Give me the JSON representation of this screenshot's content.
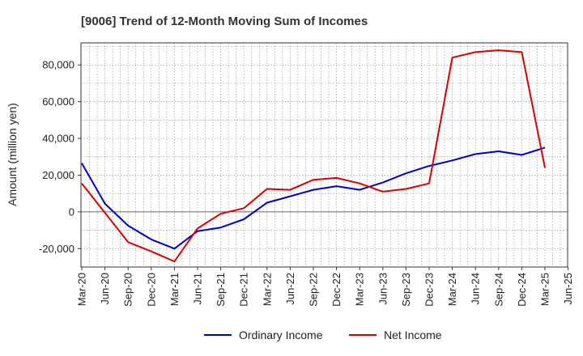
{
  "chart_data": {
    "type": "line",
    "title": "[9006]  Trend of 12-Month Moving Sum of Incomes",
    "xlabel": "",
    "ylabel": "Amount (million yen)",
    "ylim": [
      -30000,
      92000
    ],
    "yticks": [
      -20000,
      0,
      20000,
      40000,
      60000,
      80000
    ],
    "ytick_labels": [
      "-20,000",
      "0",
      "20,000",
      "40,000",
      "60,000",
      "80,000"
    ],
    "x_tick_labels": [
      "Mar-20",
      "Jun-20",
      "Sep-20",
      "Dec-20",
      "Mar-21",
      "Jun-21",
      "Sep-21",
      "Dec-21",
      "Mar-22",
      "Jun-22",
      "Sep-22",
      "Dec-22",
      "Mar-23",
      "Jun-23",
      "Sep-23",
      "Dec-23",
      "Mar-24",
      "Jun-24",
      "Sep-24",
      "Dec-24",
      "Mar-25",
      "Jun-25"
    ],
    "grid": true,
    "legend_position": "bottom",
    "series": [
      {
        "name": "Ordinary Income",
        "color": "#0000cc",
        "values": [
          26500,
          4500,
          -7500,
          -15000,
          -20000,
          -10500,
          -8500,
          -4000,
          5000,
          8500,
          12000,
          14000,
          12000,
          16000,
          21000,
          25000,
          28000,
          31500,
          33000,
          31000,
          35000
        ]
      },
      {
        "name": "Net Income",
        "color": "#dd0000",
        "values": [
          15500,
          -500,
          -16500,
          -21500,
          -27000,
          -9000,
          -1000,
          2000,
          12500,
          12000,
          17500,
          18500,
          15500,
          11000,
          12500,
          15500,
          84000,
          87000,
          88000,
          87000,
          24000
        ]
      }
    ]
  }
}
